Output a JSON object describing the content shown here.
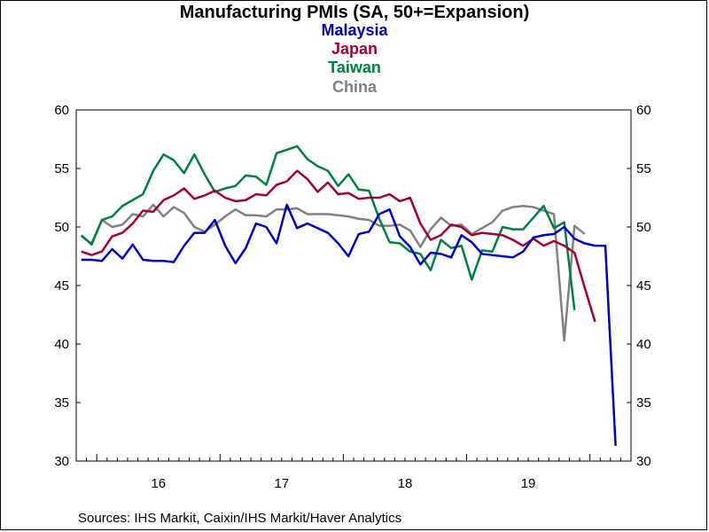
{
  "chart_data": {
    "type": "line",
    "title": "Manufacturing PMIs (SA, 50+=Expansion)",
    "ylim": [
      30,
      60
    ],
    "y_ticks": [
      30,
      35,
      40,
      45,
      50,
      55,
      60
    ],
    "x_tick_labels": [
      "16",
      "17",
      "18",
      "19"
    ],
    "source": "Sources:  IHS Markit, Caixin/IHS Markit/Haver Analytics",
    "x": [
      "2015-11",
      "2015-12",
      "2016-01",
      "2016-02",
      "2016-03",
      "2016-04",
      "2016-05",
      "2016-06",
      "2016-07",
      "2016-08",
      "2016-09",
      "2016-10",
      "2016-11",
      "2016-12",
      "2017-01",
      "2017-02",
      "2017-03",
      "2017-04",
      "2017-05",
      "2017-06",
      "2017-07",
      "2017-08",
      "2017-09",
      "2017-10",
      "2017-11",
      "2017-12",
      "2018-01",
      "2018-02",
      "2018-03",
      "2018-04",
      "2018-05",
      "2018-06",
      "2018-07",
      "2018-08",
      "2018-09",
      "2018-10",
      "2018-11",
      "2018-12",
      "2019-01",
      "2019-02",
      "2019-03",
      "2019-04",
      "2019-05",
      "2019-06",
      "2019-07",
      "2019-08",
      "2019-09",
      "2019-10",
      "2019-11",
      "2019-12",
      "2020-01",
      "2020-02",
      "2020-03",
      "2020-04"
    ],
    "series": [
      {
        "name": "Malaysia",
        "color": "#0000c0",
        "values": [
          47.2,
          47.2,
          47.1,
          48.1,
          47.3,
          48.5,
          47.2,
          47.1,
          47.1,
          47.0,
          48.4,
          49.5,
          49.5,
          50.6,
          48.4,
          46.9,
          48.2,
          50.3,
          50.0,
          48.6,
          51.9,
          49.9,
          50.3,
          49.9,
          49.5,
          48.6,
          47.5,
          49.4,
          49.6,
          51.1,
          51.5,
          49.2,
          48.3,
          46.8,
          47.8,
          47.7,
          47.4,
          49.3,
          48.7,
          47.7,
          47.6,
          47.5,
          47.4,
          47.9,
          49.1,
          49.3,
          49.4,
          50.0,
          49.0,
          48.6,
          48.4,
          48.4,
          31.3,
          null
        ]
      },
      {
        "name": "Japan",
        "color": "#a00030",
        "values": [
          47.9,
          47.6,
          47.9,
          49.2,
          49.5,
          50.3,
          51.4,
          51.3,
          52.3,
          52.7,
          53.3,
          52.4,
          52.7,
          53.1,
          52.5,
          52.2,
          52.3,
          52.8,
          52.7,
          53.6,
          53.9,
          54.8,
          54.1,
          53.0,
          53.8,
          52.8,
          52.9,
          52.4,
          52.5,
          52.5,
          52.8,
          52.2,
          52.5,
          50.3,
          48.9,
          49.3,
          50.2,
          50.0,
          49.3,
          49.5,
          49.4,
          49.3,
          48.9,
          48.4,
          49.0,
          48.4,
          48.8,
          48.4,
          47.8,
          44.8,
          41.9,
          null,
          null,
          null
        ]
      },
      {
        "name": "Taiwan",
        "color": "#008040",
        "values": [
          49.3,
          48.5,
          50.6,
          50.9,
          51.8,
          52.3,
          52.8,
          54.8,
          56.2,
          55.7,
          54.6,
          56.2,
          54.5,
          53.0,
          53.3,
          53.5,
          54.4,
          54.3,
          53.6,
          56.3,
          56.6,
          56.9,
          55.8,
          55.2,
          54.8,
          53.5,
          54.5,
          53.2,
          53.1,
          50.7,
          48.7,
          48.6,
          47.9,
          47.7,
          46.3,
          48.9,
          48.2,
          48.4,
          45.5,
          48.0,
          47.9,
          50.0,
          49.8,
          49.8,
          50.8,
          51.8,
          49.9,
          50.4,
          42.9,
          null,
          null,
          null,
          null,
          null
        ]
      },
      {
        "name": "China",
        "color": "#808080",
        "values": [
          49.2,
          48.6,
          50.6,
          50.0,
          50.2,
          51.1,
          50.9,
          51.9,
          50.9,
          51.7,
          51.2,
          50.0,
          49.6,
          50.2,
          50.9,
          51.5,
          51.0,
          51.0,
          50.9,
          51.5,
          51.5,
          51.6,
          51.1,
          51.1,
          51.1,
          51.0,
          50.9,
          50.7,
          50.6,
          50.1,
          50.1,
          50.2,
          49.7,
          48.3,
          49.8,
          50.8,
          50.1,
          50.2,
          49.4,
          49.9,
          50.4,
          51.4,
          51.7,
          51.8,
          51.7,
          51.4,
          51.1,
          40.3,
          50.1,
          49.4,
          null,
          null,
          null,
          null
        ]
      }
    ]
  }
}
